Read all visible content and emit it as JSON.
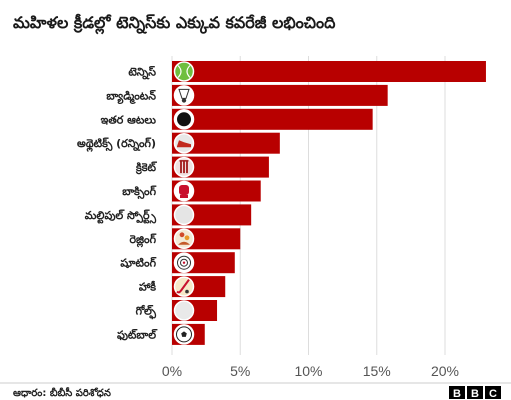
{
  "chart_data": {
    "type": "bar",
    "orientation": "horizontal",
    "title": "మహిళల క్రీడల్లో టెన్నిస్‌కు ఎక్కువ కవరేజీ లభించింది",
    "categories": [
      "టెన్నిస్",
      "బ్యాడ్మింటన్",
      "ఇతర ఆటలు",
      "అథ్లెటిక్స్ (రన్నింగ్)",
      "క్రికెట్",
      "బాక్సింగ్",
      "మల్టిపుల్ స్పోర్ట్స్",
      "రెజ్లింగ్",
      "షూటింగ్",
      "హాకీ",
      "గోల్ఫ్",
      "ఫుట్‌బాల్"
    ],
    "icons": [
      "tennis-ball-icon",
      "shuttlecock-icon",
      "black-dot-icon",
      "running-shoe-icon",
      "cricket-wicket-icon",
      "boxing-glove-icon",
      "multi-sport-icon",
      "wrestling-icon",
      "shooting-target-icon",
      "hockey-stick-icon",
      "golf-ball-icon",
      "football-icon"
    ],
    "values": [
      23,
      15.8,
      14.7,
      7.9,
      7.1,
      6.5,
      5.8,
      5.0,
      4.6,
      3.9,
      3.3,
      2.4
    ],
    "x_ticks": [
      "0%",
      "5%",
      "10%",
      "15%",
      "20%"
    ],
    "xlim": [
      0,
      25
    ],
    "ylabel": "",
    "xlabel": "",
    "grid": true,
    "bar_color": "#b80000"
  },
  "footer": {
    "source": "ఆధారం: బీబీసీ పరిశోధన",
    "logo_letters": [
      "B",
      "B",
      "C"
    ]
  }
}
